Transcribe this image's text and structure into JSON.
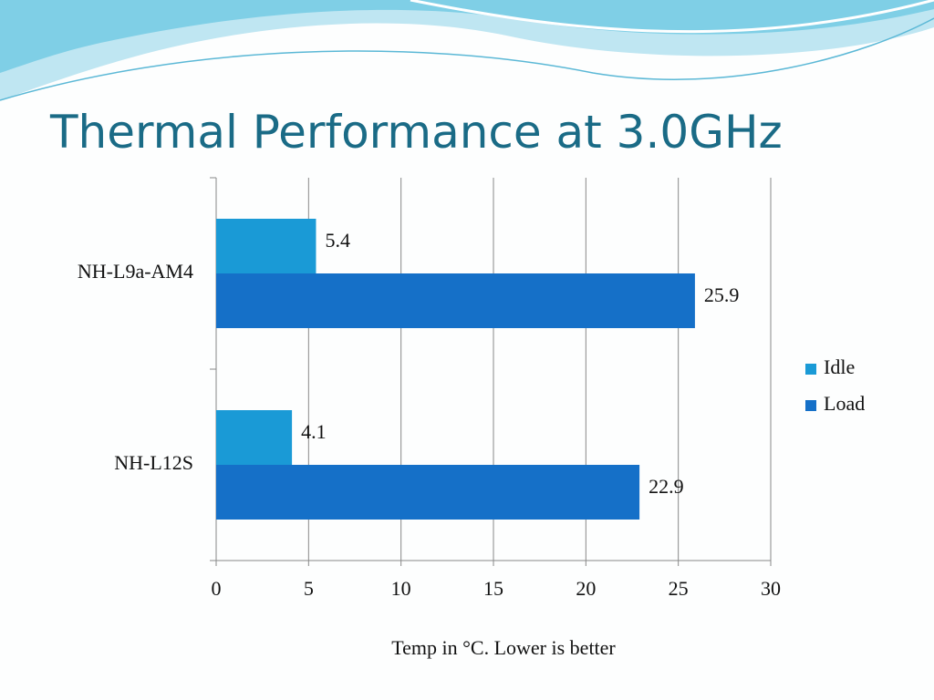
{
  "chart_data": {
    "type": "barh",
    "title": "Thermal Performance at 3.0GHz",
    "categories": [
      "NH-L9a-AM4",
      "NH-L12S"
    ],
    "series": [
      {
        "name": "Idle",
        "color": "#1a9ad6",
        "values": [
          5.4,
          4.1
        ]
      },
      {
        "name": "Load",
        "color": "#1570c8",
        "values": [
          25.9,
          22.9
        ]
      }
    ],
    "xlabel": "Temp in °C. Lower is better",
    "xlim": [
      0,
      30
    ],
    "xticks": [
      0,
      5,
      10,
      15,
      20,
      25,
      30
    ],
    "grid": true,
    "legend": "right"
  }
}
